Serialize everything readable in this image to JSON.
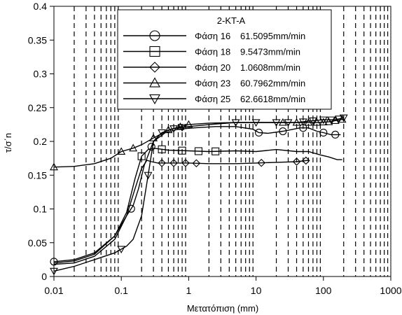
{
  "chart_data": {
    "type": "line",
    "title": "",
    "xlabel": "Μετατόπιση (mm)",
    "ylabel": "τ/σ΄n",
    "x_scale": "log",
    "xlim": [
      0.01,
      1000
    ],
    "ylim": [
      0,
      0.4
    ],
    "x_ticks": [
      0.01,
      0.1,
      1,
      10,
      100,
      1000
    ],
    "x_tick_labels": [
      "0.01",
      "0.1",
      "1",
      "10",
      "100",
      "1000"
    ],
    "y_ticks": [
      0,
      0.05,
      0.1,
      0.15,
      0.2,
      0.25,
      0.3,
      0.35,
      0.4
    ],
    "y_tick_labels": [
      "0",
      "0.05",
      "0.1",
      "0.15",
      "0.2",
      "0.25",
      "0.3",
      "0.35",
      "0.4"
    ],
    "grid": "vertical dashed lines at log minor ticks",
    "legend": {
      "title": "2-KT-A",
      "placement": "top-center",
      "entries": [
        {
          "label": "Φάση 16",
          "rate": "61.5095mm/min"
        },
        {
          "label": "Φάση 18",
          "rate": "9.5473mm/min"
        },
        {
          "label": "Φάση 20",
          "rate": "1.0608mm/min"
        },
        {
          "label": "Φάση 23",
          "rate": "60.7962mm/min"
        },
        {
          "label": "Φάση 25",
          "rate": "62.6618mm/min"
        }
      ]
    },
    "series": [
      {
        "name": "Φάση 16 61.5095mm/min",
        "marker": "circle",
        "x": [
          0.01,
          0.02,
          0.04,
          0.08,
          0.12,
          0.15,
          0.18,
          0.22,
          0.3,
          0.45,
          0.7,
          1.2,
          2.5,
          5,
          9,
          11,
          15,
          25,
          45,
          60,
          80,
          100,
          130,
          180
        ],
        "y": [
          0.022,
          0.025,
          0.035,
          0.06,
          0.09,
          0.105,
          0.13,
          0.165,
          0.2,
          0.213,
          0.218,
          0.22,
          0.222,
          0.222,
          0.218,
          0.213,
          0.212,
          0.215,
          0.22,
          0.22,
          0.215,
          0.213,
          0.21,
          0.21
        ],
        "marker_x": [
          0.01,
          0.14,
          0.28,
          11,
          25,
          50,
          100,
          150
        ]
      },
      {
        "name": "Φάση 18 9.5473mm/min",
        "marker": "square",
        "x": [
          0.01,
          0.02,
          0.04,
          0.08,
          0.12,
          0.16,
          0.2,
          0.25,
          0.3,
          0.5,
          1,
          2,
          5,
          10,
          20,
          40,
          60,
          90,
          120,
          160,
          190
        ],
        "y": [
          0.02,
          0.023,
          0.033,
          0.06,
          0.095,
          0.145,
          0.178,
          0.188,
          0.19,
          0.187,
          0.186,
          0.185,
          0.186,
          0.185,
          0.188,
          0.185,
          0.185,
          0.18,
          0.177,
          0.173,
          0.173
        ],
        "marker_x": [
          0.2,
          0.4,
          0.8,
          1.4,
          2.5
        ]
      },
      {
        "name": "Φάση 20 1.0608mm/min",
        "marker": "diamond",
        "x": [
          0.01,
          0.02,
          0.04,
          0.08,
          0.12,
          0.16,
          0.2,
          0.24,
          0.28,
          0.35,
          0.5,
          1,
          2,
          5,
          10,
          20,
          40,
          60
        ],
        "y": [
          0.018,
          0.02,
          0.03,
          0.055,
          0.09,
          0.13,
          0.16,
          0.172,
          0.17,
          0.168,
          0.168,
          0.168,
          0.167,
          0.167,
          0.168,
          0.169,
          0.17,
          0.172
        ],
        "marker_x": [
          0.4,
          0.6,
          0.9,
          1.3,
          12,
          40,
          55
        ]
      },
      {
        "name": "Φάση 23 60.7962mm/min",
        "marker": "triangle-up",
        "x": [
          0.01,
          0.02,
          0.04,
          0.07,
          0.1,
          0.15,
          0.2,
          0.3,
          0.5,
          1,
          2,
          5,
          10,
          20,
          40,
          80,
          120,
          180,
          200
        ],
        "y": [
          0.162,
          0.163,
          0.167,
          0.175,
          0.185,
          0.19,
          0.195,
          0.205,
          0.217,
          0.225,
          0.227,
          0.228,
          0.228,
          0.228,
          0.228,
          0.228,
          0.229,
          0.232,
          0.233
        ],
        "marker_x": [
          0.01,
          0.1,
          0.15,
          0.3,
          0.5,
          0.75,
          1,
          25,
          40,
          60,
          80,
          100,
          120,
          150,
          190
        ]
      },
      {
        "name": "Φάση 25 62.6618mm/min",
        "marker": "triangle-down",
        "x": [
          0.01,
          0.02,
          0.04,
          0.08,
          0.12,
          0.15,
          0.2,
          0.25,
          0.3,
          0.4,
          0.6,
          1,
          2,
          5,
          10,
          20,
          40,
          60,
          100,
          150,
          200
        ],
        "y": [
          0.008,
          0.015,
          0.025,
          0.035,
          0.045,
          0.055,
          0.09,
          0.15,
          0.2,
          0.213,
          0.219,
          0.222,
          0.225,
          0.228,
          0.228,
          0.228,
          0.228,
          0.23,
          0.232,
          0.232,
          0.235
        ],
        "marker_x": [
          0.01,
          0.1,
          0.25,
          0.4,
          0.6,
          0.8,
          5,
          10,
          20,
          30,
          50,
          70,
          100,
          130,
          170,
          200
        ]
      }
    ]
  }
}
